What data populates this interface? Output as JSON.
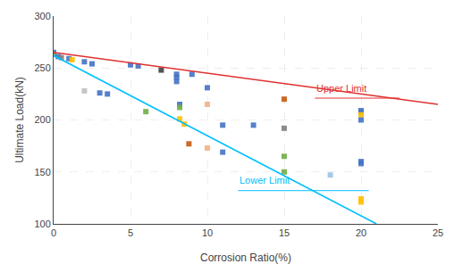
{
  "chart_data": {
    "type": "scatter",
    "xlabel": "Corrosion Ratio(%)",
    "ylabel": "Ultimate Load(kN)",
    "xlim": [
      0,
      25
    ],
    "ylim": [
      100,
      300
    ],
    "xticks": [
      0,
      5,
      10,
      15,
      20,
      25
    ],
    "yticks": [
      100,
      150,
      200,
      250,
      300
    ],
    "grid": true,
    "marker": "square",
    "x": [
      0.0,
      0.0,
      0.3,
      0.5,
      1.0,
      1.2,
      2.0,
      2.5,
      2.0,
      3.0,
      3.5,
      5.0,
      5.5,
      6.0,
      7.0,
      8.0,
      8.0,
      8.0,
      8.2,
      8.2,
      8.2,
      8.5,
      8.8,
      9.0,
      10.0,
      10.0,
      10.0,
      11.0,
      11.0,
      13.0,
      15.0,
      15.0,
      15.0,
      15.0,
      18.0,
      20.0,
      20.0,
      20.0,
      20.0,
      20.0,
      20.0,
      20.0,
      20.0
    ],
    "values": [
      265,
      263,
      261,
      260,
      259,
      258,
      256,
      254,
      228,
      226,
      225,
      253,
      252,
      208,
      248,
      244,
      241,
      237,
      215,
      212,
      201,
      196,
      177,
      244,
      231,
      215,
      173,
      195,
      169,
      195,
      220,
      192,
      165,
      150,
      147,
      209,
      207,
      205,
      200,
      160,
      158,
      124,
      121
    ],
    "colors": [
      "#4472c4",
      "#70ad47",
      "#4472c4",
      "#808080",
      "#4472c4",
      "#ffc000",
      "#4472c4",
      "#4472c4",
      "#c0c0c0",
      "#4472c4",
      "#4472c4",
      "#4472c4",
      "#4472c4",
      "#70ad47",
      "#404040",
      "#4472c4",
      "#4472c4",
      "#4472c4",
      "#4472c4",
      "#70ad47",
      "#ffc000",
      "#ffc000",
      "#c55a11",
      "#4472c4",
      "#4472c4",
      "#f4b183",
      "#f4b183",
      "#4472c4",
      "#4472c4",
      "#4472c4",
      "#c55a11",
      "#808080",
      "#70ad47",
      "#70ad47",
      "#9dc3e6",
      "#4472c4",
      "#4472c4",
      "#ffc000",
      "#4472c4",
      "#4472c4",
      "#4472c4",
      "#ffc000",
      "#ffc000"
    ],
    "lines": [
      {
        "x": [
          0,
          25
        ],
        "values": [
          265,
          215
        ],
        "color": "#e03030"
      },
      {
        "x": [
          0,
          21.0
        ],
        "values": [
          262,
          100
        ],
        "color": "#00bfff"
      }
    ],
    "annotations": [
      {
        "text": "Upper Limit",
        "x": 17.0,
        "y": 224,
        "color": "#e03030",
        "underline": {
          "x": [
            17.0,
            22.5
          ],
          "y": 221
        }
      },
      {
        "text": "Lower Limit",
        "x": 12.0,
        "y": 135,
        "color": "#00bfff",
        "underline": {
          "x": [
            12.0,
            20.5
          ],
          "y": 132
        }
      }
    ]
  }
}
